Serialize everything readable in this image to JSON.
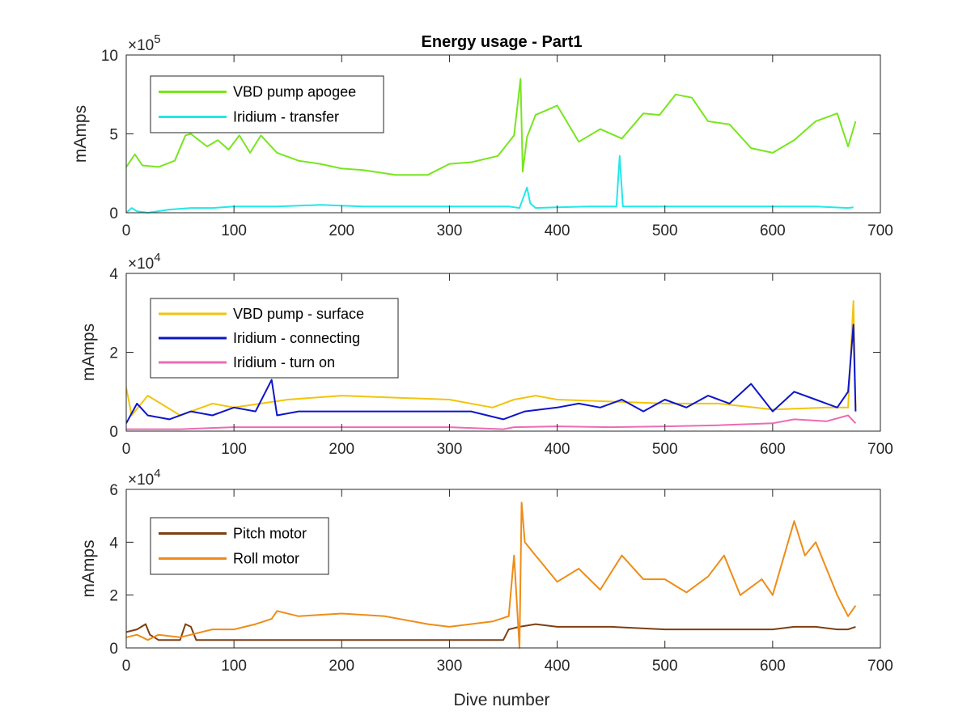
{
  "figure": {
    "title": "Energy usage - Part1",
    "xlabel": "Dive number"
  },
  "chart_data": [
    {
      "type": "line",
      "title": "Energy usage - Part1",
      "xlabel": "",
      "ylabel": "mAmps",
      "xlim": [
        0,
        700
      ],
      "ylim": [
        0,
        10
      ],
      "x_ticks": [
        "0",
        "100",
        "200",
        "300",
        "400",
        "500",
        "600",
        "700"
      ],
      "y_ticks": [
        "0",
        "5",
        "10"
      ],
      "y_exponent": {
        "base": "×10",
        "power": "5"
      },
      "legend": "top-left",
      "series": [
        {
          "name": "VBD pump apogee",
          "color": "#77e61e",
          "x": [
            0,
            8,
            15,
            30,
            45,
            55,
            60,
            75,
            85,
            95,
            105,
            115,
            125,
            140,
            160,
            180,
            200,
            220,
            250,
            280,
            300,
            320,
            345,
            360,
            366,
            368,
            372,
            380,
            390,
            400,
            420,
            440,
            460,
            480,
            495,
            510,
            525,
            540,
            560,
            580,
            600,
            620,
            640,
            660,
            670,
            677
          ],
          "values": [
            2.9,
            3.7,
            3.0,
            2.9,
            3.3,
            4.9,
            5.0,
            4.2,
            4.6,
            4.0,
            4.9,
            3.8,
            4.9,
            3.8,
            3.3,
            3.1,
            2.8,
            2.7,
            2.4,
            2.4,
            3.1,
            3.2,
            3.6,
            4.9,
            8.5,
            2.6,
            4.8,
            6.2,
            6.5,
            6.8,
            4.5,
            5.3,
            4.7,
            6.3,
            6.2,
            7.5,
            7.3,
            5.8,
            5.6,
            4.1,
            3.8,
            4.6,
            5.8,
            6.3,
            4.2,
            5.8
          ]
        },
        {
          "name": "Iridium - transfer",
          "color": "#22e8e8",
          "x": [
            0,
            5,
            10,
            20,
            40,
            60,
            80,
            100,
            140,
            180,
            220,
            260,
            300,
            340,
            355,
            365,
            372,
            375,
            380,
            400,
            430,
            455,
            458,
            461,
            480,
            500,
            530,
            555,
            560,
            575,
            600,
            640,
            670,
            675
          ],
          "values": [
            0.0,
            0.3,
            0.1,
            0.0,
            0.2,
            0.3,
            0.3,
            0.4,
            0.4,
            0.5,
            0.4,
            0.4,
            0.4,
            0.4,
            0.4,
            0.3,
            1.6,
            0.6,
            0.3,
            0.35,
            0.4,
            0.4,
            3.6,
            0.4,
            0.4,
            0.4,
            0.4,
            0.4,
            0.4,
            0.4,
            0.4,
            0.4,
            0.3,
            0.35
          ]
        }
      ]
    },
    {
      "type": "line",
      "title": "",
      "xlabel": "",
      "ylabel": "mAmps",
      "xlim": [
        0,
        700
      ],
      "ylim": [
        0,
        4
      ],
      "x_ticks": [
        "0",
        "100",
        "200",
        "300",
        "400",
        "500",
        "600",
        "700"
      ],
      "y_ticks": [
        "0",
        "2",
        "4"
      ],
      "y_exponent": {
        "base": "×10",
        "power": "4"
      },
      "legend": "top-left",
      "series": [
        {
          "name": "VBD pump - surface",
          "color": "#f2c40d",
          "x": [
            0,
            5,
            20,
            50,
            80,
            100,
            150,
            200,
            250,
            300,
            340,
            360,
            380,
            400,
            450,
            500,
            550,
            600,
            650,
            670,
            675,
            677
          ],
          "values": [
            1.1,
            0.4,
            0.9,
            0.4,
            0.7,
            0.6,
            0.8,
            0.9,
            0.85,
            0.8,
            0.6,
            0.8,
            0.9,
            0.8,
            0.75,
            0.7,
            0.7,
            0.55,
            0.6,
            0.6,
            3.3,
            0.6
          ]
        },
        {
          "name": "Iridium - connecting",
          "color": "#0d15c9",
          "x": [
            0,
            10,
            20,
            40,
            60,
            80,
            100,
            120,
            135,
            140,
            160,
            200,
            240,
            280,
            320,
            350,
            370,
            400,
            420,
            440,
            460,
            480,
            500,
            520,
            540,
            560,
            580,
            600,
            620,
            640,
            660,
            670,
            675,
            677
          ],
          "values": [
            0.2,
            0.7,
            0.4,
            0.3,
            0.5,
            0.4,
            0.6,
            0.5,
            1.3,
            0.4,
            0.5,
            0.5,
            0.5,
            0.5,
            0.5,
            0.3,
            0.5,
            0.6,
            0.7,
            0.6,
            0.8,
            0.5,
            0.8,
            0.6,
            0.9,
            0.7,
            1.2,
            0.5,
            1.0,
            0.8,
            0.6,
            1.0,
            2.7,
            0.5
          ]
        },
        {
          "name": "Iridium - turn on",
          "color": "#ec6bb4",
          "x": [
            0,
            50,
            100,
            150,
            200,
            250,
            300,
            350,
            360,
            400,
            450,
            500,
            550,
            600,
            620,
            650,
            670,
            677
          ],
          "values": [
            0.05,
            0.05,
            0.1,
            0.1,
            0.1,
            0.1,
            0.1,
            0.05,
            0.1,
            0.12,
            0.1,
            0.12,
            0.15,
            0.2,
            0.3,
            0.25,
            0.4,
            0.2
          ]
        }
      ]
    },
    {
      "type": "line",
      "title": "",
      "xlabel": "Dive number",
      "ylabel": "mAmps",
      "xlim": [
        0,
        700
      ],
      "ylim": [
        0,
        6
      ],
      "x_ticks": [
        "0",
        "100",
        "200",
        "300",
        "400",
        "500",
        "600",
        "700"
      ],
      "y_ticks": [
        "0",
        "2",
        "4",
        "6"
      ],
      "y_exponent": {
        "base": "×10",
        "power": "4"
      },
      "legend": "top-left",
      "series": [
        {
          "name": "Pitch motor",
          "color": "#7d3f12",
          "x": [
            0,
            10,
            18,
            22,
            30,
            50,
            55,
            60,
            65,
            100,
            150,
            200,
            250,
            300,
            350,
            355,
            365,
            380,
            400,
            450,
            500,
            550,
            600,
            620,
            640,
            660,
            670,
            677
          ],
          "values": [
            0.6,
            0.7,
            0.9,
            0.5,
            0.3,
            0.3,
            0.9,
            0.8,
            0.3,
            0.3,
            0.3,
            0.3,
            0.3,
            0.3,
            0.3,
            0.7,
            0.8,
            0.9,
            0.8,
            0.8,
            0.7,
            0.7,
            0.7,
            0.8,
            0.8,
            0.7,
            0.7,
            0.8
          ]
        },
        {
          "name": "Roll motor",
          "color": "#ef8c18",
          "x": [
            0,
            10,
            20,
            30,
            50,
            60,
            80,
            100,
            120,
            135,
            140,
            160,
            200,
            240,
            280,
            300,
            340,
            355,
            360,
            365,
            367,
            370,
            380,
            400,
            420,
            440,
            460,
            480,
            500,
            520,
            540,
            555,
            570,
            590,
            600,
            620,
            630,
            640,
            650,
            660,
            670,
            677
          ],
          "values": [
            0.4,
            0.5,
            0.3,
            0.5,
            0.4,
            0.5,
            0.7,
            0.7,
            0.9,
            1.1,
            1.4,
            1.2,
            1.3,
            1.2,
            0.9,
            0.8,
            1.0,
            1.2,
            3.5,
            0.0,
            5.5,
            4.0,
            3.5,
            2.5,
            3.0,
            2.2,
            3.5,
            2.6,
            2.6,
            2.1,
            2.7,
            3.5,
            2.0,
            2.6,
            2.0,
            4.8,
            3.5,
            4.0,
            3.0,
            2.0,
            1.2,
            1.6
          ]
        }
      ]
    }
  ]
}
